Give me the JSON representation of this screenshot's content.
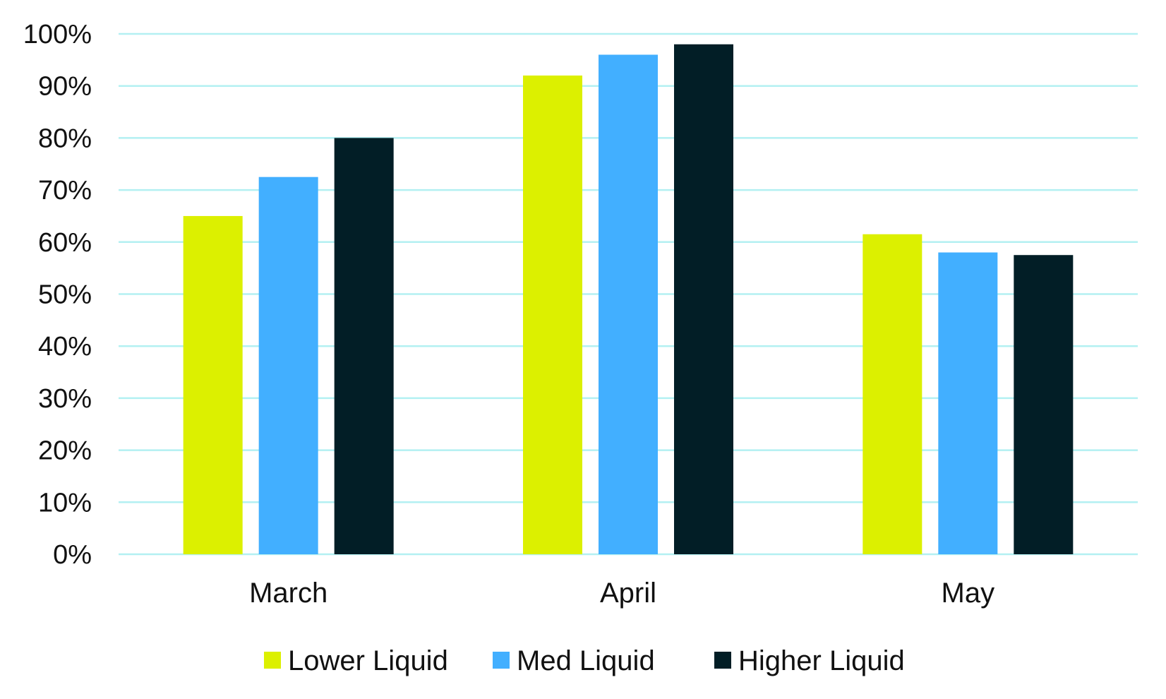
{
  "chart_data": {
    "type": "bar",
    "categories": [
      "March",
      "April",
      "May"
    ],
    "series": [
      {
        "name": "Lower Liquid",
        "color": "#dcf000",
        "values": [
          65,
          92,
          61.5
        ]
      },
      {
        "name": "Med Liquid",
        "color": "#42afff",
        "values": [
          72.5,
          96,
          58
        ]
      },
      {
        "name": "Higher Liquid",
        "color": "#021e26",
        "values": [
          80,
          98,
          57.5
        ]
      }
    ],
    "ylim": [
      0,
      100
    ],
    "yticks": [
      0,
      10,
      20,
      30,
      40,
      50,
      60,
      70,
      80,
      90,
      100
    ],
    "ytick_labels": [
      "0%",
      "10%",
      "20%",
      "30%",
      "40%",
      "50%",
      "60%",
      "70%",
      "80%",
      "90%",
      "100%"
    ],
    "grid": true,
    "grid_color": "#b3f0f2",
    "legend_position": "bottom"
  }
}
